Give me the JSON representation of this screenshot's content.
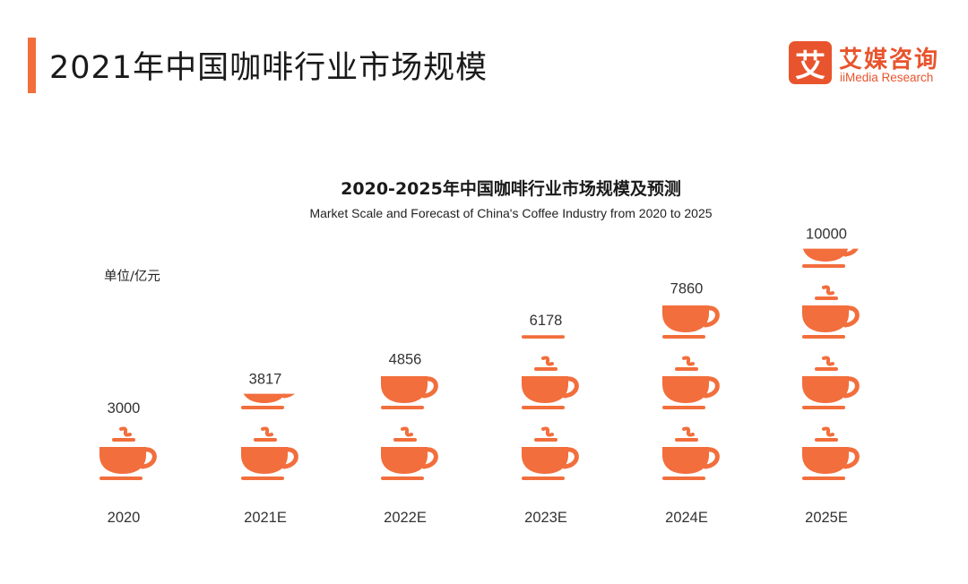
{
  "page": {
    "title": "2021年中国咖啡行业市场规模",
    "accent_color": "#f26e3c"
  },
  "logo": {
    "mark_glyph": "艾",
    "name_cn": "艾媒咨询",
    "name_en": "iiMedia Research",
    "color": "#e8542d"
  },
  "icon": "coffee-cup-icon",
  "chart_data": {
    "type": "bar",
    "title": "2020-2025年中国咖啡行业市场规模及预测",
    "subtitle": "Market Scale and Forecast of China's Coffee Industry from 2020 to 2025",
    "unit": "单位/亿元",
    "categories": [
      "2020",
      "2021E",
      "2022E",
      "2023E",
      "2024E",
      "2025E"
    ],
    "values": [
      3000,
      3817,
      4856,
      6178,
      7860,
      10000
    ],
    "value_labels": [
      "3000",
      "3817",
      "4856",
      "6178",
      "7860",
      "10000"
    ],
    "units_per_icon": 3000,
    "color": "#f26e3c"
  }
}
